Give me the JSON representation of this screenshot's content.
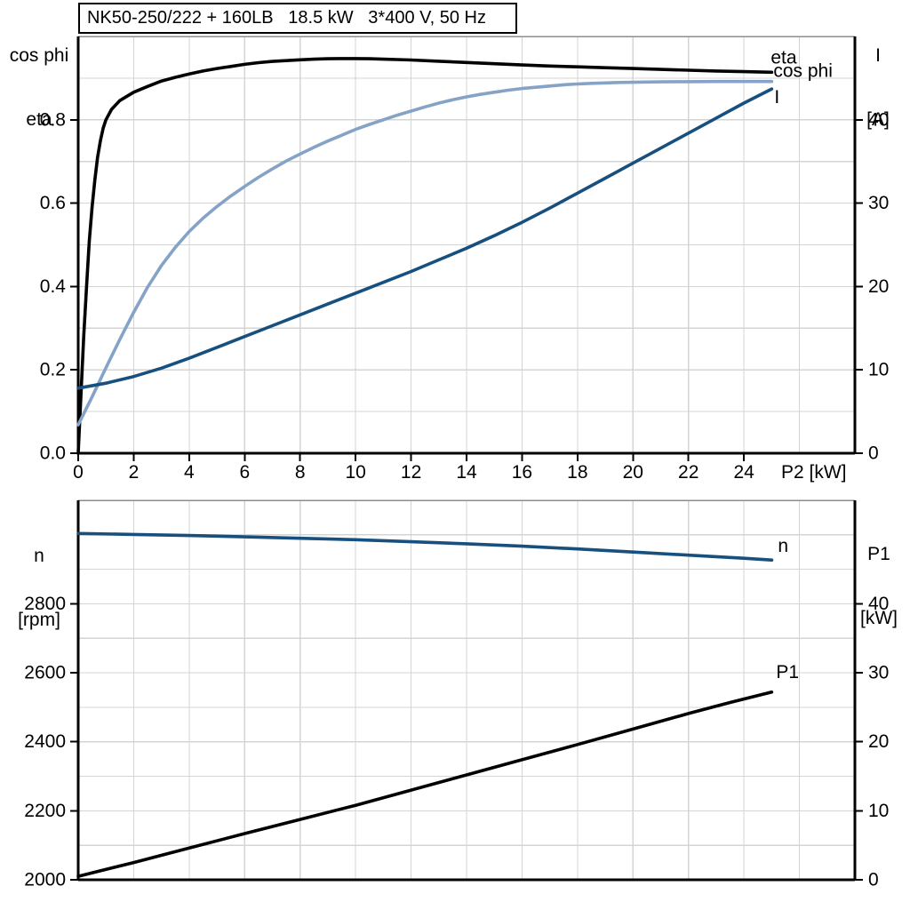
{
  "title": "NK50-250/222 + 160LB   18.5 kW   3*400 V, 50 Hz",
  "colors": {
    "black": "#000000",
    "light_blue": "#85A3C6",
    "dark_blue": "#174F7E",
    "grid": "#D4D4D4",
    "top_border": "#8C8C8C",
    "axis": "#000000"
  },
  "chart_data": [
    {
      "type": "line",
      "x_axis": {
        "label": "P2 [kW]",
        "min": 0,
        "max": 28,
        "grid_step": 2,
        "tick_values": [
          0,
          2,
          4,
          6,
          8,
          10,
          12,
          14,
          16,
          18,
          20,
          22,
          24
        ],
        "tick_labels": [
          "0",
          "2",
          "4",
          "6",
          "8",
          "10",
          "12",
          "14",
          "16",
          "18",
          "20",
          "22",
          "24"
        ]
      },
      "left_axis": {
        "title_lines": [
          "cos phi",
          "eta"
        ],
        "min": 0,
        "max": 1.0,
        "grid_step": 0.1,
        "tick_values": [
          0,
          0.2,
          0.4,
          0.6,
          0.8
        ],
        "tick_labels": [
          "0.0",
          "0.2",
          "0.4",
          "0.6",
          "0.8"
        ]
      },
      "right_axis": {
        "title_lines": [
          "I",
          "[A]"
        ],
        "min": 0,
        "max": 50,
        "grid_step": 5,
        "tick_values": [
          0,
          10,
          20,
          30,
          40
        ],
        "tick_labels": [
          "0",
          "10",
          "20",
          "30",
          "40"
        ]
      },
      "series": [
        {
          "key": "eta",
          "label": "eta",
          "axis": "left",
          "color": "#000000",
          "points": [
            [
              0,
              0
            ],
            [
              0.1,
              0.14
            ],
            [
              0.2,
              0.28
            ],
            [
              0.3,
              0.4
            ],
            [
              0.4,
              0.51
            ],
            [
              0.5,
              0.59
            ],
            [
              0.6,
              0.655
            ],
            [
              0.7,
              0.71
            ],
            [
              0.8,
              0.75
            ],
            [
              0.9,
              0.78
            ],
            [
              1,
              0.8
            ],
            [
              1.2,
              0.825
            ],
            [
              1.5,
              0.846
            ],
            [
              2,
              0.866
            ],
            [
              2.5,
              0.88
            ],
            [
              3,
              0.893
            ],
            [
              3.5,
              0.902
            ],
            [
              4,
              0.91
            ],
            [
              4.5,
              0.917
            ],
            [
              5,
              0.923
            ],
            [
              5.5,
              0.928
            ],
            [
              6,
              0.933
            ],
            [
              6.5,
              0.937
            ],
            [
              7,
              0.94
            ],
            [
              7.5,
              0.942
            ],
            [
              8,
              0.944
            ],
            [
              8.5,
              0.9455
            ],
            [
              9,
              0.9465
            ],
            [
              9.5,
              0.947
            ],
            [
              10,
              0.947
            ],
            [
              10.5,
              0.9465
            ],
            [
              11,
              0.9455
            ],
            [
              11.5,
              0.9445
            ],
            [
              12,
              0.9435
            ],
            [
              13,
              0.9405
            ],
            [
              14,
              0.9375
            ],
            [
              15,
              0.9345
            ],
            [
              16,
              0.9315
            ],
            [
              17,
              0.929
            ],
            [
              18,
              0.927
            ],
            [
              19,
              0.925
            ],
            [
              20,
              0.923
            ],
            [
              21,
              0.921
            ],
            [
              22,
              0.919
            ],
            [
              23,
              0.917
            ],
            [
              24,
              0.9155
            ],
            [
              25,
              0.914
            ]
          ]
        },
        {
          "key": "cos-phi",
          "label": "cos phi",
          "axis": "left",
          "color": "#85A3C6",
          "points": [
            [
              0,
              0.068
            ],
            [
              0.5,
              0.135
            ],
            [
              1,
              0.205
            ],
            [
              1.5,
              0.273
            ],
            [
              2,
              0.338
            ],
            [
              2.5,
              0.398
            ],
            [
              3,
              0.45
            ],
            [
              3.5,
              0.494
            ],
            [
              4,
              0.532
            ],
            [
              4.5,
              0.564
            ],
            [
              5,
              0.592
            ],
            [
              5.5,
              0.617
            ],
            [
              6,
              0.64
            ],
            [
              6.5,
              0.662
            ],
            [
              7,
              0.682
            ],
            [
              7.5,
              0.701
            ],
            [
              8,
              0.718
            ],
            [
              8.5,
              0.734
            ],
            [
              9,
              0.749
            ],
            [
              9.5,
              0.763
            ],
            [
              10,
              0.777
            ],
            [
              10.5,
              0.789
            ],
            [
              11,
              0.8
            ],
            [
              11.5,
              0.811
            ],
            [
              12,
              0.821
            ],
            [
              12.5,
              0.831
            ],
            [
              13,
              0.84
            ],
            [
              13.5,
              0.848
            ],
            [
              14,
              0.855
            ],
            [
              14.5,
              0.861
            ],
            [
              15,
              0.866
            ],
            [
              15.5,
              0.871
            ],
            [
              16,
              0.875
            ],
            [
              16.5,
              0.878
            ],
            [
              17,
              0.881
            ],
            [
              17.5,
              0.884
            ],
            [
              18,
              0.886
            ],
            [
              18.5,
              0.8875
            ],
            [
              19,
              0.8885
            ],
            [
              19.5,
              0.8895
            ],
            [
              20,
              0.89
            ],
            [
              21,
              0.891
            ],
            [
              22,
              0.8915
            ],
            [
              23,
              0.892
            ],
            [
              24,
              0.892
            ],
            [
              25,
              0.892
            ]
          ]
        },
        {
          "key": "current",
          "label": "I",
          "axis": "right",
          "color": "#174F7E",
          "points": [
            [
              0,
              7.8
            ],
            [
              1,
              8.4
            ],
            [
              2,
              9.2
            ],
            [
              3,
              10.2
            ],
            [
              4,
              11.4
            ],
            [
              5,
              12.7
            ],
            [
              6,
              14.0
            ],
            [
              7,
              15.3
            ],
            [
              8,
              16.6
            ],
            [
              9,
              17.9
            ],
            [
              10,
              19.2
            ],
            [
              11,
              20.5
            ],
            [
              12,
              21.8
            ],
            [
              13,
              23.2
            ],
            [
              14,
              24.6
            ],
            [
              15,
              26.1
            ],
            [
              16,
              27.7
            ],
            [
              17,
              29.4
            ],
            [
              18,
              31.2
            ],
            [
              19,
              33.0
            ],
            [
              20,
              34.8
            ],
            [
              21,
              36.6
            ],
            [
              22,
              38.4
            ],
            [
              23,
              40.2
            ],
            [
              24,
              42.0
            ],
            [
              25,
              43.7
            ]
          ]
        }
      ]
    },
    {
      "type": "line",
      "x_axis": {
        "label": "",
        "min": 0,
        "max": 28,
        "grid_step": 2,
        "tick_values": [],
        "tick_labels": []
      },
      "left_axis": {
        "title_lines": [
          "n",
          "[rpm]"
        ],
        "min": 2000,
        "max": 3100,
        "grid_step": 100,
        "tick_values": [
          2000,
          2200,
          2400,
          2600,
          2800
        ],
        "tick_labels": [
          "2000",
          "2200",
          "2400",
          "2600",
          "2800"
        ]
      },
      "right_axis": {
        "title_lines": [
          "P1",
          "[kW]"
        ],
        "min": 0,
        "max": 55,
        "grid_step": 5,
        "tick_values": [
          0,
          10,
          20,
          30,
          40
        ],
        "tick_labels": [
          "0",
          "10",
          "20",
          "30",
          "40"
        ]
      },
      "series": [
        {
          "key": "speed",
          "label": "n",
          "axis": "left",
          "color": "#174F7E",
          "points": [
            [
              0,
              3004
            ],
            [
              2,
              3001
            ],
            [
              4,
              2998
            ],
            [
              6,
              2994
            ],
            [
              8,
              2990
            ],
            [
              10,
              2986
            ],
            [
              12,
              2980
            ],
            [
              14,
              2974
            ],
            [
              16,
              2967
            ],
            [
              18,
              2959
            ],
            [
              20,
              2950
            ],
            [
              22,
              2941
            ],
            [
              24,
              2932
            ],
            [
              25,
              2927
            ]
          ]
        },
        {
          "key": "input-power",
          "label": "P1",
          "axis": "right",
          "color": "#000000",
          "points": [
            [
              0,
              0.5
            ],
            [
              2,
              2.5
            ],
            [
              4,
              4.6
            ],
            [
              6,
              6.7
            ],
            [
              8,
              8.75
            ],
            [
              10,
              10.8
            ],
            [
              12,
              13.0
            ],
            [
              14,
              15.2
            ],
            [
              16,
              17.4
            ],
            [
              18,
              19.6
            ],
            [
              20,
              21.85
            ],
            [
              22,
              24.1
            ],
            [
              23.5,
              25.7
            ],
            [
              25,
              27.2
            ]
          ]
        }
      ]
    }
  ]
}
